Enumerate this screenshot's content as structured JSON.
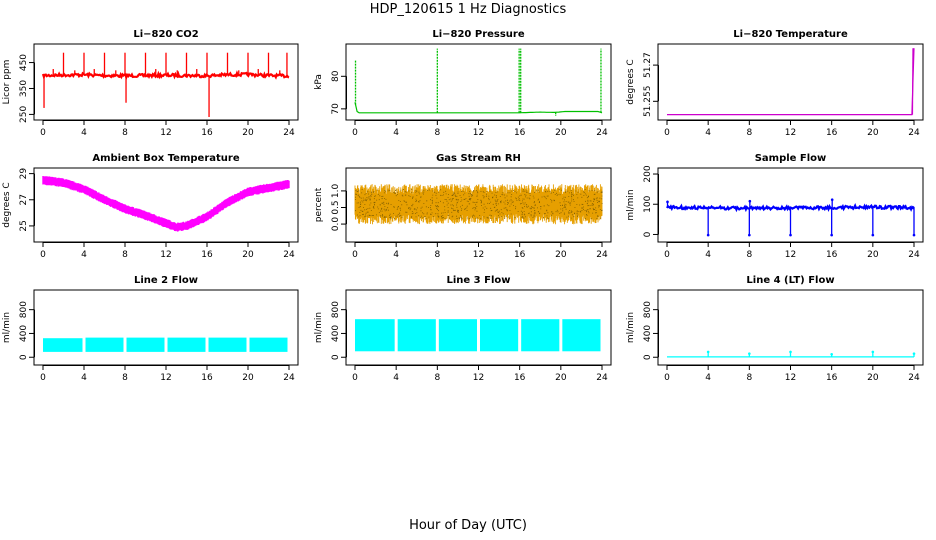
{
  "main_title": "HDP_120615  1 Hz Diagnostics",
  "x_title": "Hour of Day (UTC)",
  "chart_data": [
    {
      "type": "line",
      "title": "Li−820 CO2",
      "ylabel": "Licor ppm",
      "xlim": [
        0,
        24
      ],
      "ylim": [
        240,
        510
      ],
      "yticks": [
        250,
        350,
        450
      ],
      "xticks": [
        0,
        4,
        8,
        12,
        16,
        20,
        24
      ],
      "color": "#ff0000",
      "style": "noisy",
      "series": [
        {
          "x": [
            0,
            2,
            4,
            6,
            8,
            10,
            12,
            14,
            16,
            18,
            20,
            22,
            24
          ],
          "values": [
            400,
            402,
            403,
            400,
            399,
            400,
            401,
            400,
            399,
            403,
            404,
            400,
            398
          ]
        }
      ],
      "spikes": [
        {
          "x": 0.1,
          "y": 275
        },
        {
          "x": 1.0,
          "y": 425
        },
        {
          "x": 2.0,
          "y": 488
        },
        {
          "x": 3.1,
          "y": 420
        },
        {
          "x": 4.0,
          "y": 488
        },
        {
          "x": 5.0,
          "y": 425
        },
        {
          "x": 6.0,
          "y": 488
        },
        {
          "x": 7.1,
          "y": 420
        },
        {
          "x": 8.0,
          "y": 488
        },
        {
          "x": 8.1,
          "y": 295
        },
        {
          "x": 10.0,
          "y": 488
        },
        {
          "x": 11.0,
          "y": 425
        },
        {
          "x": 12.0,
          "y": 488
        },
        {
          "x": 13.1,
          "y": 420
        },
        {
          "x": 14.0,
          "y": 488
        },
        {
          "x": 15.0,
          "y": 425
        },
        {
          "x": 16.0,
          "y": 488
        },
        {
          "x": 16.2,
          "y": 240
        },
        {
          "x": 18.0,
          "y": 488
        },
        {
          "x": 19.1,
          "y": 420
        },
        {
          "x": 20.0,
          "y": 488
        },
        {
          "x": 21.0,
          "y": 425
        },
        {
          "x": 22.0,
          "y": 488
        },
        {
          "x": 23.1,
          "y": 420
        },
        {
          "x": 23.8,
          "y": 488
        }
      ]
    },
    {
      "type": "line",
      "title": "Li−820 Pressure",
      "ylabel": "kPa",
      "xlim": [
        0,
        24
      ],
      "ylim": [
        67.5,
        89
      ],
      "yticks": [
        70,
        80
      ],
      "xticks": [
        0,
        4,
        8,
        12,
        16,
        20,
        24
      ],
      "color": "#00c000",
      "style": "line",
      "series": [
        {
          "x": [
            0,
            0.2,
            0.3,
            8,
            16,
            18,
            19.4,
            20.4,
            23.6,
            24
          ],
          "values": [
            72,
            69.2,
            68.8,
            68.8,
            68.8,
            69.0,
            68.9,
            69.2,
            69.2,
            68.8
          ]
        }
      ],
      "spikes": [
        {
          "x": 0.05,
          "y": 85
        },
        {
          "x": 8.0,
          "y": 88.5
        },
        {
          "x": 15.95,
          "y": 88.5
        },
        {
          "x": 16.1,
          "y": 88.5
        },
        {
          "x": 19.5,
          "y": 67.8
        },
        {
          "x": 23.9,
          "y": 88.5
        }
      ]
    },
    {
      "type": "line",
      "title": "Li−820 Temperature",
      "ylabel": "degrees C",
      "xlim": [
        0,
        24
      ],
      "ylim": [
        51.2485,
        51.2775
      ],
      "yticks": [
        51.255,
        51.27
      ],
      "xticks": [
        0,
        4,
        8,
        12,
        16,
        20,
        24
      ],
      "color": "#cc00cc",
      "style": "line",
      "series": [
        {
          "x": [
            0,
            23.85,
            23.9
          ],
          "values": [
            51.2495,
            51.2495,
            51.277
          ]
        }
      ]
    },
    {
      "type": "line",
      "title": "Ambient Box Temperature",
      "ylabel": "degrees C",
      "xlim": [
        0,
        24
      ],
      "ylim": [
        24.0,
        29.2
      ],
      "yticks": [
        25,
        27,
        29
      ],
      "xticks": [
        0,
        4,
        8,
        12,
        16,
        20,
        24
      ],
      "color": "#ff00ff",
      "style": "band",
      "series": [
        {
          "x": [
            0,
            2,
            4,
            6,
            8,
            10,
            12,
            13,
            14,
            16,
            18,
            20,
            22,
            24
          ],
          "values": [
            28.5,
            28.3,
            27.8,
            27.0,
            26.3,
            25.8,
            25.2,
            24.9,
            25.0,
            25.7,
            26.8,
            27.6,
            27.9,
            28.2
          ]
        }
      ],
      "band_halfwidth": 0.35
    },
    {
      "type": "line",
      "title": "Gas Stream RH",
      "ylabel": "percent",
      "xlim": [
        0,
        24
      ],
      "ylim": [
        -0.45,
        1.6
      ],
      "yticks": [
        0.0,
        0.5,
        1.0
      ],
      "xticks": [
        0,
        4,
        8,
        12,
        16,
        20,
        24
      ],
      "color": "#e69f00",
      "style": "dense",
      "series": [
        {
          "x": [
            0,
            24
          ],
          "values": [
            0.6,
            0.6
          ]
        }
      ],
      "band_halfwidth": 0.55
    },
    {
      "type": "line",
      "title": "Sample Flow",
      "ylabel": "ml/min",
      "xlim": [
        0,
        24
      ],
      "ylim": [
        -15,
        210
      ],
      "yticks": [
        0,
        100,
        200
      ],
      "xticks": [
        0,
        4,
        8,
        12,
        16,
        20,
        24
      ],
      "color": "#0000ff",
      "style": "noisy",
      "series": [
        {
          "x": [
            0,
            4,
            8,
            12,
            16,
            20,
            24
          ],
          "values": [
            90,
            88,
            87,
            88,
            89,
            91,
            88
          ]
        }
      ],
      "spikes": [
        {
          "x": 0.05,
          "y": 108
        },
        {
          "x": 4.0,
          "y": -2
        },
        {
          "x": 8.0,
          "y": -2
        },
        {
          "x": 8.05,
          "y": 110
        },
        {
          "x": 12.0,
          "y": -2
        },
        {
          "x": 16.0,
          "y": -2
        },
        {
          "x": 16.05,
          "y": 115
        },
        {
          "x": 20.0,
          "y": -2
        },
        {
          "x": 24.0,
          "y": -2
        }
      ]
    },
    {
      "type": "line",
      "title": "Line 2 Flow",
      "ylabel": "ml/min",
      "xlim": [
        0,
        24
      ],
      "ylim": [
        -80,
        1080
      ],
      "yticks": [
        0,
        400,
        800
      ],
      "xticks": [
        0,
        4,
        8,
        12,
        16,
        20,
        24
      ],
      "color": "#00ffff",
      "style": "block",
      "blocks": [
        [
          0,
          4,
          90,
          320
        ],
        [
          4,
          8,
          90,
          330
        ],
        [
          8,
          12,
          90,
          330
        ],
        [
          12,
          16,
          90,
          330
        ],
        [
          16,
          20,
          90,
          330
        ],
        [
          20,
          24,
          90,
          330
        ]
      ]
    },
    {
      "type": "line",
      "title": "Line 3 Flow",
      "ylabel": "ml/min",
      "xlim": [
        0,
        24
      ],
      "ylim": [
        -80,
        1080
      ],
      "yticks": [
        0,
        400,
        800
      ],
      "xticks": [
        0,
        4,
        8,
        12,
        16,
        20,
        24
      ],
      "color": "#00ffff",
      "style": "block",
      "blocks": [
        [
          0,
          4,
          100,
          640
        ],
        [
          4,
          8,
          100,
          640
        ],
        [
          8,
          12,
          100,
          640
        ],
        [
          12,
          16,
          100,
          640
        ],
        [
          16,
          20,
          100,
          640
        ],
        [
          20,
          24,
          100,
          640
        ]
      ]
    },
    {
      "type": "line",
      "title": "Line 4 (LT) Flow",
      "ylabel": "ml/min",
      "xlim": [
        0,
        24
      ],
      "ylim": [
        -80,
        1080
      ],
      "yticks": [
        0,
        400,
        800
      ],
      "xticks": [
        0,
        4,
        8,
        12,
        16,
        20,
        24
      ],
      "color": "#00ffff",
      "style": "line",
      "series": [
        {
          "x": [
            0,
            24
          ],
          "values": [
            5,
            5
          ]
        }
      ],
      "spikes": [
        {
          "x": 4.0,
          "y": 90
        },
        {
          "x": 8.0,
          "y": 60
        },
        {
          "x": 12.0,
          "y": 90
        },
        {
          "x": 16.0,
          "y": 50
        },
        {
          "x": 20.0,
          "y": 90
        },
        {
          "x": 24.0,
          "y": 60
        }
      ]
    }
  ]
}
